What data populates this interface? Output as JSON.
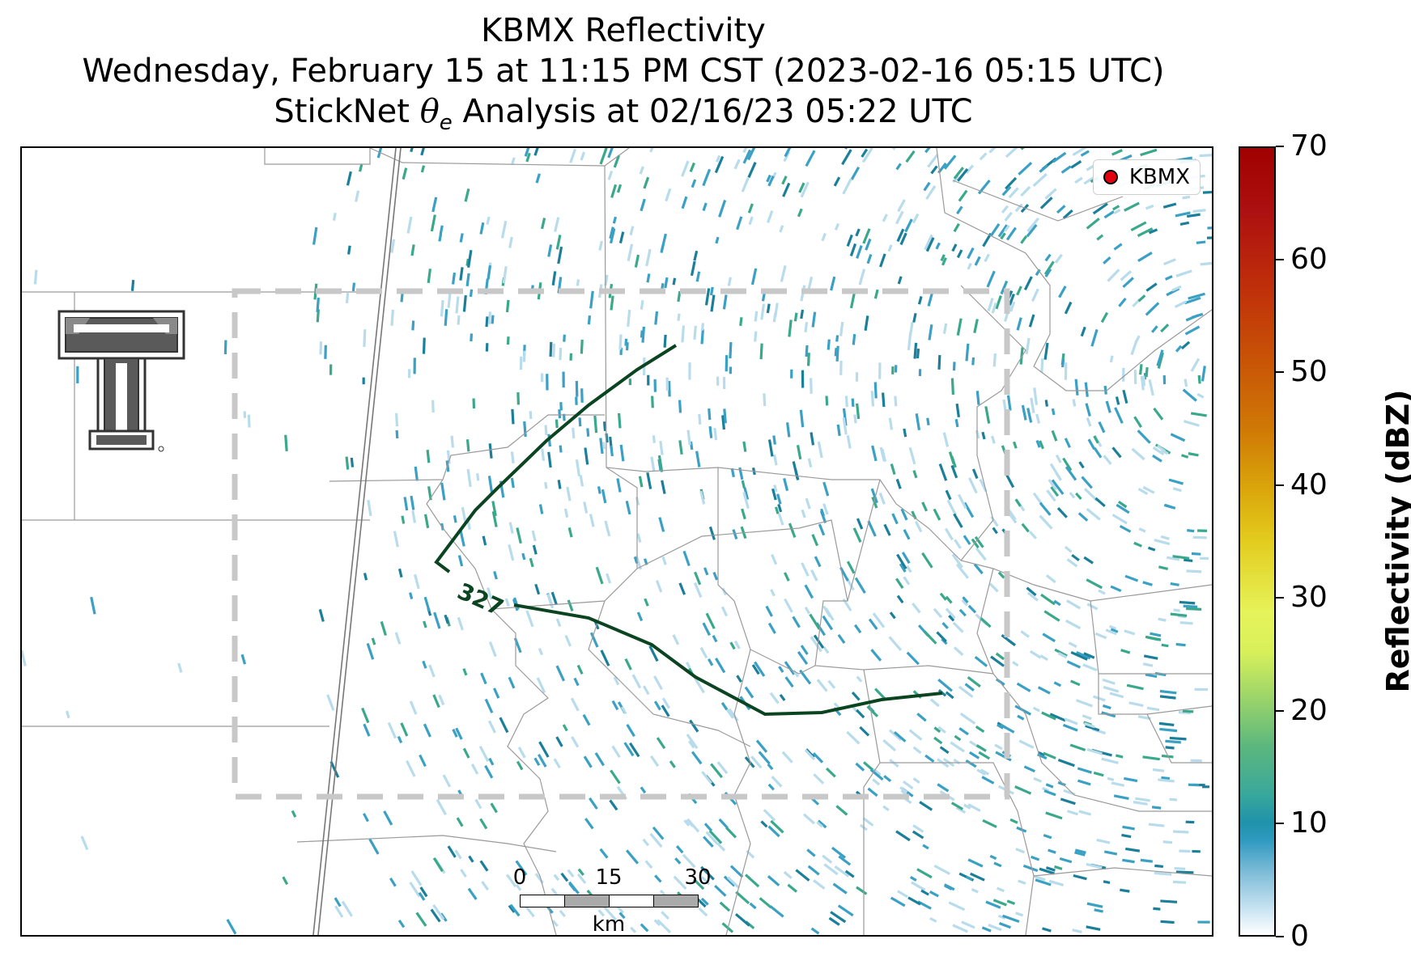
{
  "title": {
    "line1": "KBMX Reflectivity",
    "line2": "Wednesday, February 15 at 11:15 PM CST (2023-02-16 05:15 UTC)",
    "line3_prefix": "StickNet ",
    "line3_theta": "θ",
    "line3_sub": "e",
    "line3_suffix": " Analysis at 02/16/23 05:22 UTC"
  },
  "legend": {
    "label": "KBMX",
    "marker_color": "#e3000f"
  },
  "contour": {
    "label": "327",
    "color": "#0b4420"
  },
  "scale_bar": {
    "labels": [
      "0",
      "15",
      "30"
    ],
    "unit": "km"
  },
  "colorbar": {
    "title": "Reflectivity (dBZ)",
    "ticks": [
      "0",
      "10",
      "20",
      "30",
      "40",
      "50",
      "60",
      "70"
    ],
    "min": 0,
    "max": 70
  },
  "colors": {
    "analysis_box": "#c8c8c8",
    "county_lines": "#9a9a9a",
    "state_line": "#777777",
    "echo_light": "#b8dceb",
    "echo_mid": "#3aa0c4",
    "echo_dark": "#1b7f9a",
    "echo_green": "#3aa88a"
  },
  "logo": {
    "name": "texas-tech-double-t-logo"
  }
}
